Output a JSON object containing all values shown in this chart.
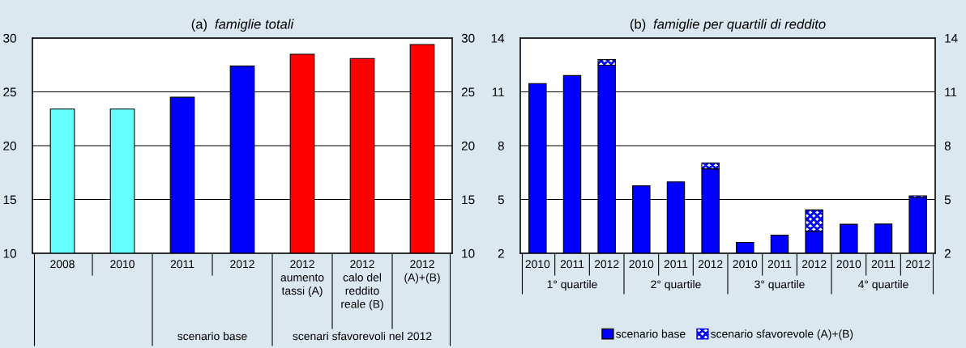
{
  "chart_data": [
    {
      "type": "bar",
      "title": "(a) famiglie totali",
      "categories": [
        "2008",
        "2010",
        "2011",
        "2012",
        "2012\naumento\ntassi (A)",
        "2012\ncalo del\nreddito\nreale (B)",
        "2012\n(A)+(B)"
      ],
      "values": [
        23.4,
        23.4,
        24.5,
        27.4,
        28.5,
        28.1,
        29.4
      ],
      "colors": [
        "#66ffff",
        "#66ffff",
        "#0000ff",
        "#0000ff",
        "#ff0000",
        "#ff0000",
        "#ff0000"
      ],
      "ylim": [
        10,
        30
      ],
      "yticks": [
        10,
        15,
        20,
        25,
        30
      ],
      "y2lim": [
        10,
        30
      ],
      "y2ticks": [
        10,
        15,
        20,
        25,
        30
      ],
      "grid": "y",
      "annotations": [
        "scenario base",
        "scenari sfavorevoli nel 2012"
      ]
    },
    {
      "type": "bar",
      "title": "(b) famiglie per quartili di reddito",
      "categories": [
        "2010",
        "2011",
        "2012",
        "2010",
        "2011",
        "2012",
        "2010",
        "2011",
        "2012",
        "2010",
        "2011",
        "2012"
      ],
      "series": [
        {
          "name": "scenario base",
          "color": "#0000ff",
          "values": [
            11.46,
            11.91,
            12.49,
            5.76,
            5.98,
            6.71,
            2.61,
            3.01,
            3.22,
            3.62,
            3.63,
            5.1
          ]
        },
        {
          "name": "scenario sfavorevole (A)+(B)",
          "color": "#0000ff",
          "values": [
            null,
            null,
            0.31,
            null,
            null,
            0.33,
            null,
            null,
            1.2,
            null,
            null,
            0.1
          ],
          "base": [
            null,
            null,
            12.49,
            null,
            null,
            6.71,
            null,
            null,
            3.22,
            null,
            null,
            5.1
          ]
        }
      ],
      "ylim": [
        2,
        14
      ],
      "yticks": [
        2,
        5,
        8,
        11,
        14
      ],
      "y2lim": [
        2,
        14
      ],
      "y2ticks": [
        2,
        5,
        8,
        11,
        14
      ],
      "grid": "y",
      "legend": "bottom",
      "annotations": [
        "1° quartile",
        "2° quartile",
        "3° quartile",
        "4° quartile"
      ]
    }
  ]
}
